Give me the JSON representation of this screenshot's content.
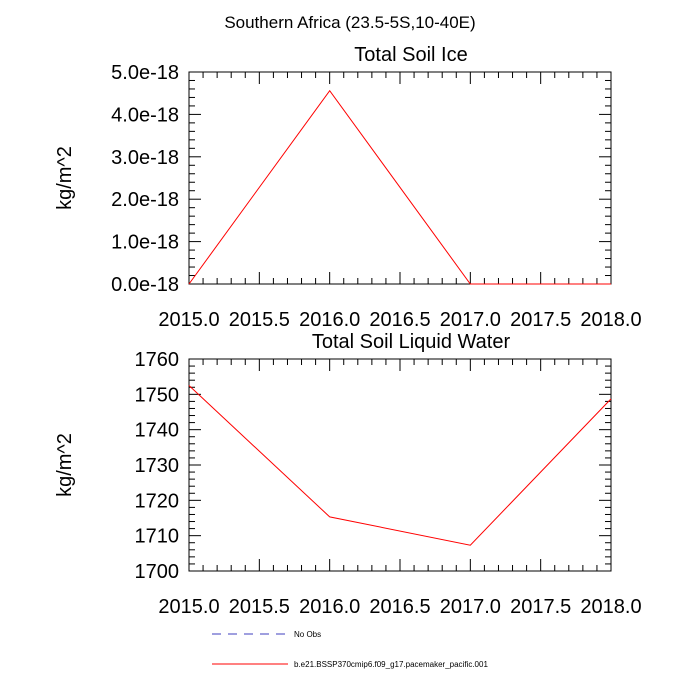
{
  "figure_title": "Southern Africa (23.5-5S,10-40E)",
  "colors": {
    "model": "#ff0000",
    "obs": "#3f3fbf",
    "axis": "#000000"
  },
  "legend": {
    "obs_label": "No Obs",
    "model_label": "b.e21.BSSP370cmip6.f09_g17.pacemaker_pacific.001"
  },
  "chart_data": [
    {
      "type": "line",
      "title": "Total Soil Ice",
      "xlabel": "",
      "ylabel": "kg/m^2",
      "xlim": [
        2015.0,
        2018.0
      ],
      "ylim": [
        0,
        5e-18
      ],
      "xticks": [
        2015.0,
        2015.5,
        2016.0,
        2016.5,
        2017.0,
        2017.5,
        2018.0
      ],
      "xtick_labels": [
        "2015.0",
        "2015.5",
        "2016.0",
        "2016.5",
        "2017.0",
        "2017.5",
        "2018.0"
      ],
      "yticks": [
        0,
        1e-18,
        2e-18,
        3e-18,
        4e-18,
        5e-18
      ],
      "ytick_labels": [
        "0.0e-18",
        "1.0e-18",
        "2.0e-18",
        "3.0e-18",
        "4.0e-18",
        "5.0e-18"
      ],
      "grid": false,
      "series": [
        {
          "name": "b.e21.BSSP370cmip6.f09_g17.pacemaker_pacific.001",
          "x": [
            2015.0,
            2016.0,
            2017.0,
            2018.0
          ],
          "values": [
            0,
            4.56e-18,
            0,
            0
          ]
        }
      ]
    },
    {
      "type": "line",
      "title": "Total Soil Liquid Water",
      "xlabel": "",
      "ylabel": "kg/m^2",
      "xlim": [
        2015.0,
        2018.0
      ],
      "ylim": [
        1700,
        1760
      ],
      "xticks": [
        2015.0,
        2015.5,
        2016.0,
        2016.5,
        2017.0,
        2017.5,
        2018.0
      ],
      "xtick_labels": [
        "2015.0",
        "2015.5",
        "2016.0",
        "2016.5",
        "2017.0",
        "2017.5",
        "2018.0"
      ],
      "yticks": [
        1700,
        1710,
        1720,
        1730,
        1740,
        1750,
        1760
      ],
      "ytick_labels": [
        "1700",
        "1710",
        "1720",
        "1730",
        "1740",
        "1750",
        "1760"
      ],
      "grid": false,
      "series": [
        {
          "name": "b.e21.BSSP370cmip6.f09_g17.pacemaker_pacific.001",
          "x": [
            2015.0,
            2016.0,
            2017.0,
            2018.0
          ],
          "values": [
            1752.5,
            1715.3,
            1707.3,
            1748.7
          ]
        }
      ]
    }
  ]
}
